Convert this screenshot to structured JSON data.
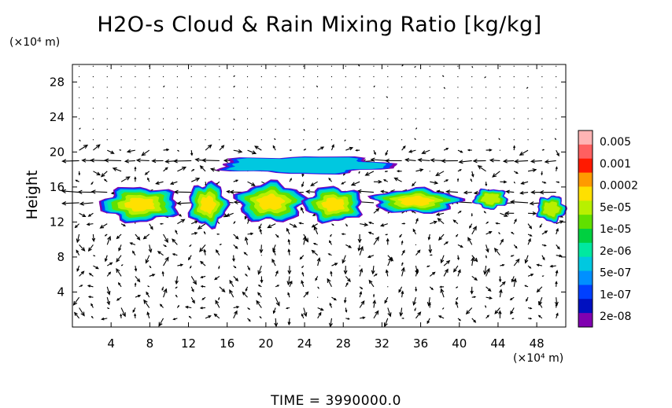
{
  "chart_data": {
    "type": "heatmap",
    "title": "H2O-s Cloud & Rain Mixing Ratio [kg/kg]",
    "y_unit": "(×10⁴ m)",
    "x_unit": "(×10⁴ m)",
    "ylabel": "Height",
    "xlim": [
      0,
      51
    ],
    "ylim": [
      0,
      30
    ],
    "x_ticks": [
      "4",
      "8",
      "12",
      "16",
      "20",
      "24",
      "28",
      "32",
      "36",
      "40",
      "44",
      "48"
    ],
    "y_ticks": [
      "4",
      "8",
      "12",
      "16",
      "20",
      "24",
      "28"
    ],
    "colorbar": {
      "labels": [
        "0.005",
        "0.001",
        "0.0002",
        "5e-05",
        "1e-05",
        "2e-06",
        "5e-07",
        "1e-07",
        "2e-08"
      ],
      "colors": [
        "#ffb4b4",
        "#ff6060",
        "#ff1a00",
        "#ff9a00",
        "#ffe000",
        "#b8f000",
        "#60e000",
        "#00d040",
        "#00e8a0",
        "#00c8e0",
        "#0090ff",
        "#0040ff",
        "#0010c0",
        "#8000b0"
      ]
    },
    "cloud_regions": [
      {
        "x_min": 3,
        "x_max": 11,
        "y_min": 12,
        "y_max": 16,
        "level": "5e-05"
      },
      {
        "x_min": 12,
        "x_max": 16,
        "y_min": 11.5,
        "y_max": 16.5,
        "level": "5e-05"
      },
      {
        "x_min": 17,
        "x_max": 24,
        "y_min": 12,
        "y_max": 16.5,
        "level": "5e-05"
      },
      {
        "x_min": 24,
        "x_max": 30,
        "y_min": 12,
        "y_max": 16,
        "level": "5e-05"
      },
      {
        "x_min": 31,
        "x_max": 40,
        "y_min": 13,
        "y_max": 15.8,
        "level": "5e-05"
      },
      {
        "x_min": 41.5,
        "x_max": 45,
        "y_min": 13.5,
        "y_max": 15.8,
        "level": "1e-05"
      },
      {
        "x_min": 48,
        "x_max": 51,
        "y_min": 12,
        "y_max": 15,
        "level": "1e-05"
      },
      {
        "x_min": 15,
        "x_max": 33,
        "y_min": 17.5,
        "y_max": 19.5,
        "level": "1e-07"
      }
    ],
    "wind_vectors": "quiver field (u,w) over domain"
  },
  "footer": {
    "time_label": "TIME  =  3990000.0"
  }
}
